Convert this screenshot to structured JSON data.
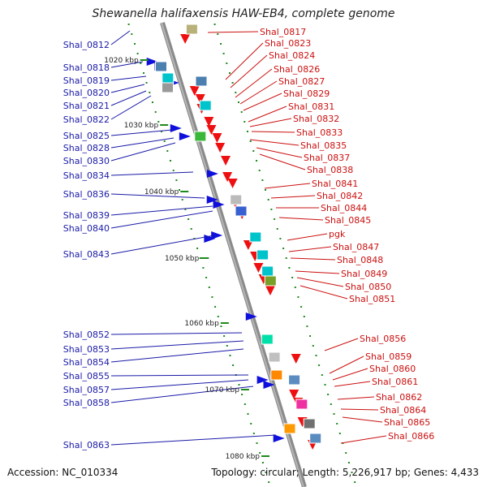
{
  "title": "Shewanella halifaxensis HAW-EB4, complete genome",
  "accession": "Accession: NC_010334",
  "topology_info": "Topology: circular; Length: 5,226,917 bp; Genes: 4,433",
  "ticks": [
    "1020 kbp",
    "1030 kbp",
    "1040 kbp",
    "1050 kbp",
    "1060 kbp",
    "1070 kbp",
    "1080 kbp"
  ],
  "left_labels": [
    "Shal_0812",
    "Shal_0818",
    "Shal_0819",
    "Shal_0820",
    "Shal_0821",
    "Shal_0822",
    "Shal_0825",
    "Shal_0828",
    "Shal_0830",
    "Shal_0834",
    "Shal_0836",
    "Shal_0839",
    "Shal_0840",
    "Shal_0843",
    "Shal_0852",
    "Shal_0853",
    "Shal_0854",
    "Shal_0855",
    "Shal_0857",
    "Shal_0858",
    "Shal_0863"
  ],
  "right_labels": [
    "Shal_0817",
    "Shal_0823",
    "Shal_0824",
    "Shal_0826",
    "Shal_0827",
    "Shal_0829",
    "Shal_0831",
    "Shal_0832",
    "Shal_0833",
    "Shal_0835",
    "Shal_0837",
    "Shal_0838",
    "Shal_0841",
    "Shal_0842",
    "Shal_0844",
    "Shal_0845",
    "pgk",
    "Shal_0847",
    "Shal_0848",
    "Shal_0849",
    "Shal_0850",
    "Shal_0851",
    "Shal_0856",
    "Shal_0859",
    "Shal_0860",
    "Shal_0861",
    "Shal_0862",
    "Shal_0864",
    "Shal_0865",
    "Shal_0866"
  ],
  "colors": {
    "forward_strand": "#1010dd",
    "reverse_strand": "#ee1010",
    "backbone": "#8a8a8a",
    "left_label": "#1a1aa8",
    "right_label": "#cc1010",
    "dots": "#1e8a1e"
  }
}
